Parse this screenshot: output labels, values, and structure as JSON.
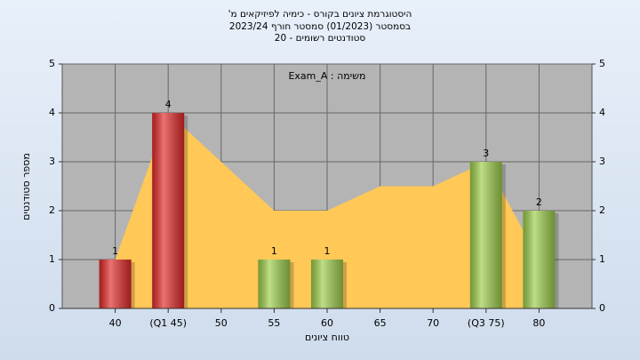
{
  "chart_data": {
    "type": "bar",
    "title": [
      "היסטוגרמת ציונים בקורס - כימיה לפיזיקאים מ'",
      "בסמסטר (01/2023) סמסטר חורף 2023/24",
      "סטודנטים רשומים - 20"
    ],
    "annotation": "משימה : Exam_A",
    "x_label": "טווח ציונים",
    "y_label": "מספר סטודנטים",
    "categories": [
      "40",
      "(Q1 45)",
      "50",
      "55",
      "60",
      "65",
      "70",
      "(Q3 75)",
      "80"
    ],
    "values": [
      1,
      4,
      null,
      1,
      1,
      null,
      null,
      3,
      2
    ],
    "colors": [
      "#e02828",
      "#e02828",
      null,
      "#9ccc48",
      "#9ccc48",
      null,
      null,
      "#9ccc48",
      "#9ccc48"
    ],
    "area": {
      "values": [
        1,
        4,
        3,
        2,
        2,
        2.5,
        2.5,
        3,
        1
      ],
      "color": "#ffc857"
    },
    "ylim": [
      0,
      5
    ],
    "yticks": [
      0,
      1,
      2,
      3,
      4,
      5
    ],
    "grid": true
  }
}
